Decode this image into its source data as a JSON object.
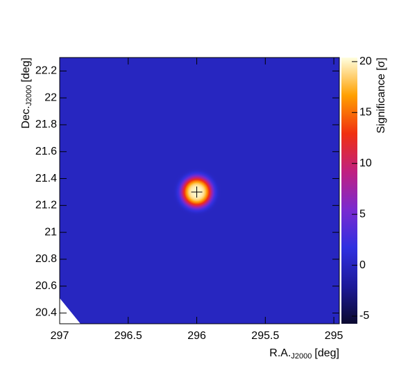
{
  "chart_data": {
    "type": "skymap",
    "xlabel": {
      "main": "R.A.",
      "sub": "J2000",
      "unit": "[deg]"
    },
    "ylabel": {
      "main": "Dec.",
      "sub": "J2000",
      "unit": "[deg]"
    },
    "zlabel": "Significance [σ]",
    "xlim": [
      297,
      294.96
    ],
    "xticks": [
      297,
      296.5,
      296,
      295.5,
      295
    ],
    "ylim": [
      20.32,
      22.3
    ],
    "yticks": [
      20.4,
      20.6,
      20.8,
      21,
      21.2,
      21.4,
      21.6,
      21.8,
      22,
      22.2
    ],
    "zlim": [
      -5.75,
      20.4
    ],
    "zticks": [
      -5,
      0,
      5,
      10,
      15,
      20
    ],
    "colormap": [
      "#0b0a30",
      "#1d1a9a",
      "#3030e0",
      "#7a2ad0",
      "#c02080",
      "#f03010",
      "#ffa000",
      "#ffffe0"
    ],
    "background": 0,
    "source": {
      "ra": 296,
      "dec": 21.3,
      "peak": 20
    }
  }
}
